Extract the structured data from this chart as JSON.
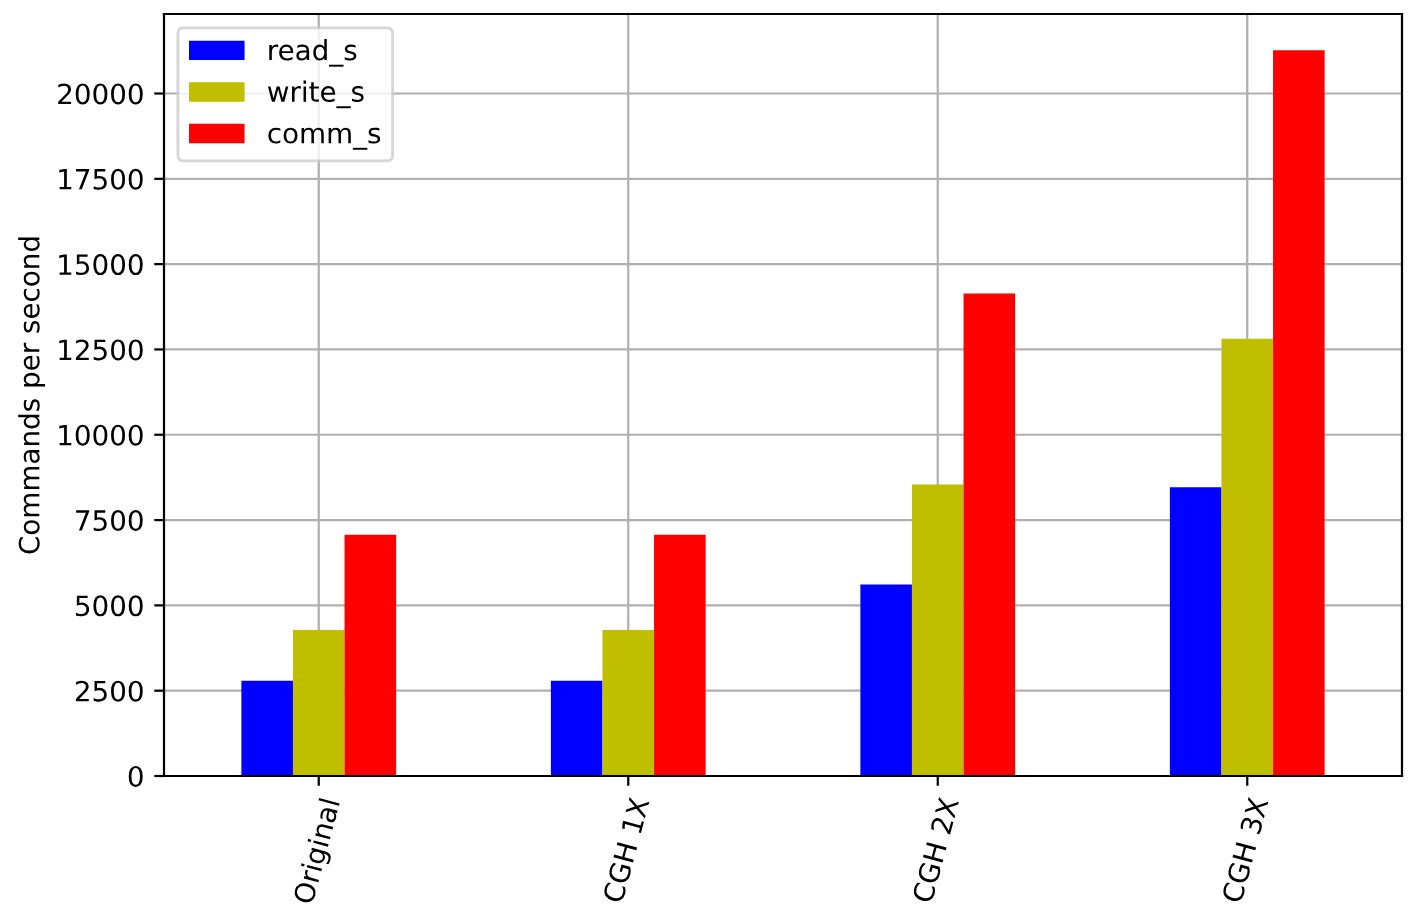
{
  "chart_data": {
    "type": "bar",
    "ylabel": "Commands per second",
    "categories": [
      "Original",
      "CGH 1X",
      "CGH 2X",
      "CGH 3X"
    ],
    "series": [
      {
        "name": "read_s",
        "color": "#0000ff",
        "values": [
          2790,
          2790,
          5610,
          8460
        ]
      },
      {
        "name": "write_s",
        "color": "#bfbf00",
        "values": [
          4280,
          4280,
          8540,
          12810
        ]
      },
      {
        "name": "comm_s",
        "color": "#ff0000",
        "values": [
          7070,
          7070,
          14140,
          21270
        ]
      }
    ],
    "ylim": [
      0,
      22330
    ],
    "yticks": [
      0,
      2500,
      5000,
      7500,
      10000,
      12500,
      15000,
      17500,
      20000
    ],
    "grid": true,
    "legend": "top left"
  }
}
